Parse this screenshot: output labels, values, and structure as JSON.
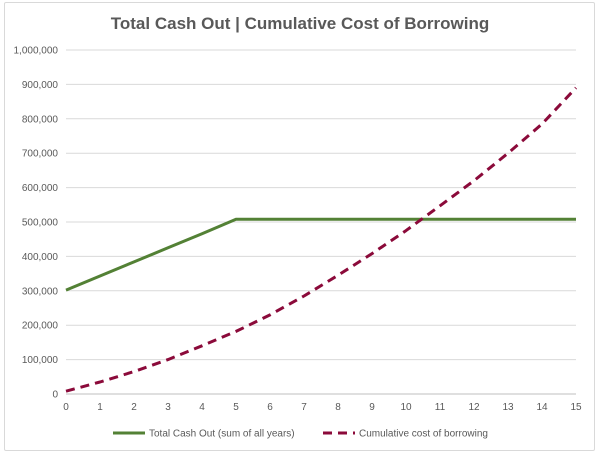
{
  "chart_data": {
    "type": "line",
    "title": "Total Cash Out | Cumulative Cost of Borrowing",
    "xlabel": "",
    "ylabel": "",
    "x": [
      0,
      1,
      2,
      3,
      4,
      5,
      6,
      7,
      8,
      9,
      10,
      11,
      12,
      13,
      14,
      15
    ],
    "xlim": [
      0,
      15
    ],
    "ylim": [
      0,
      1000000
    ],
    "y_ticks": [
      "0",
      "100,000",
      "200,000",
      "300,000",
      "400,000",
      "500,000",
      "600,000",
      "700,000",
      "800,000",
      "900,000",
      "1,000,000"
    ],
    "x_ticks": [
      "0",
      "1",
      "2",
      "3",
      "4",
      "5",
      "6",
      "7",
      "8",
      "9",
      "10",
      "11",
      "12",
      "13",
      "14",
      "15"
    ],
    "grid": true,
    "legend_position": "bottom",
    "series": [
      {
        "name": "Total Cash Out (sum of all years)",
        "color": "#538135",
        "style": "solid",
        "values": [
          302000,
          343000,
          384000,
          425000,
          466000,
          508000,
          508000,
          508000,
          508000,
          508000,
          508000,
          508000,
          508000,
          508000,
          508000,
          508000
        ]
      },
      {
        "name": "Cumulative cost of borrowing",
        "color": "#8b0a3a",
        "style": "dashed",
        "values": [
          8000,
          35000,
          65000,
          100000,
          140000,
          182000,
          230000,
          285000,
          345000,
          408000,
          475000,
          547000,
          620000,
          700000,
          785000,
          890000
        ]
      }
    ]
  }
}
